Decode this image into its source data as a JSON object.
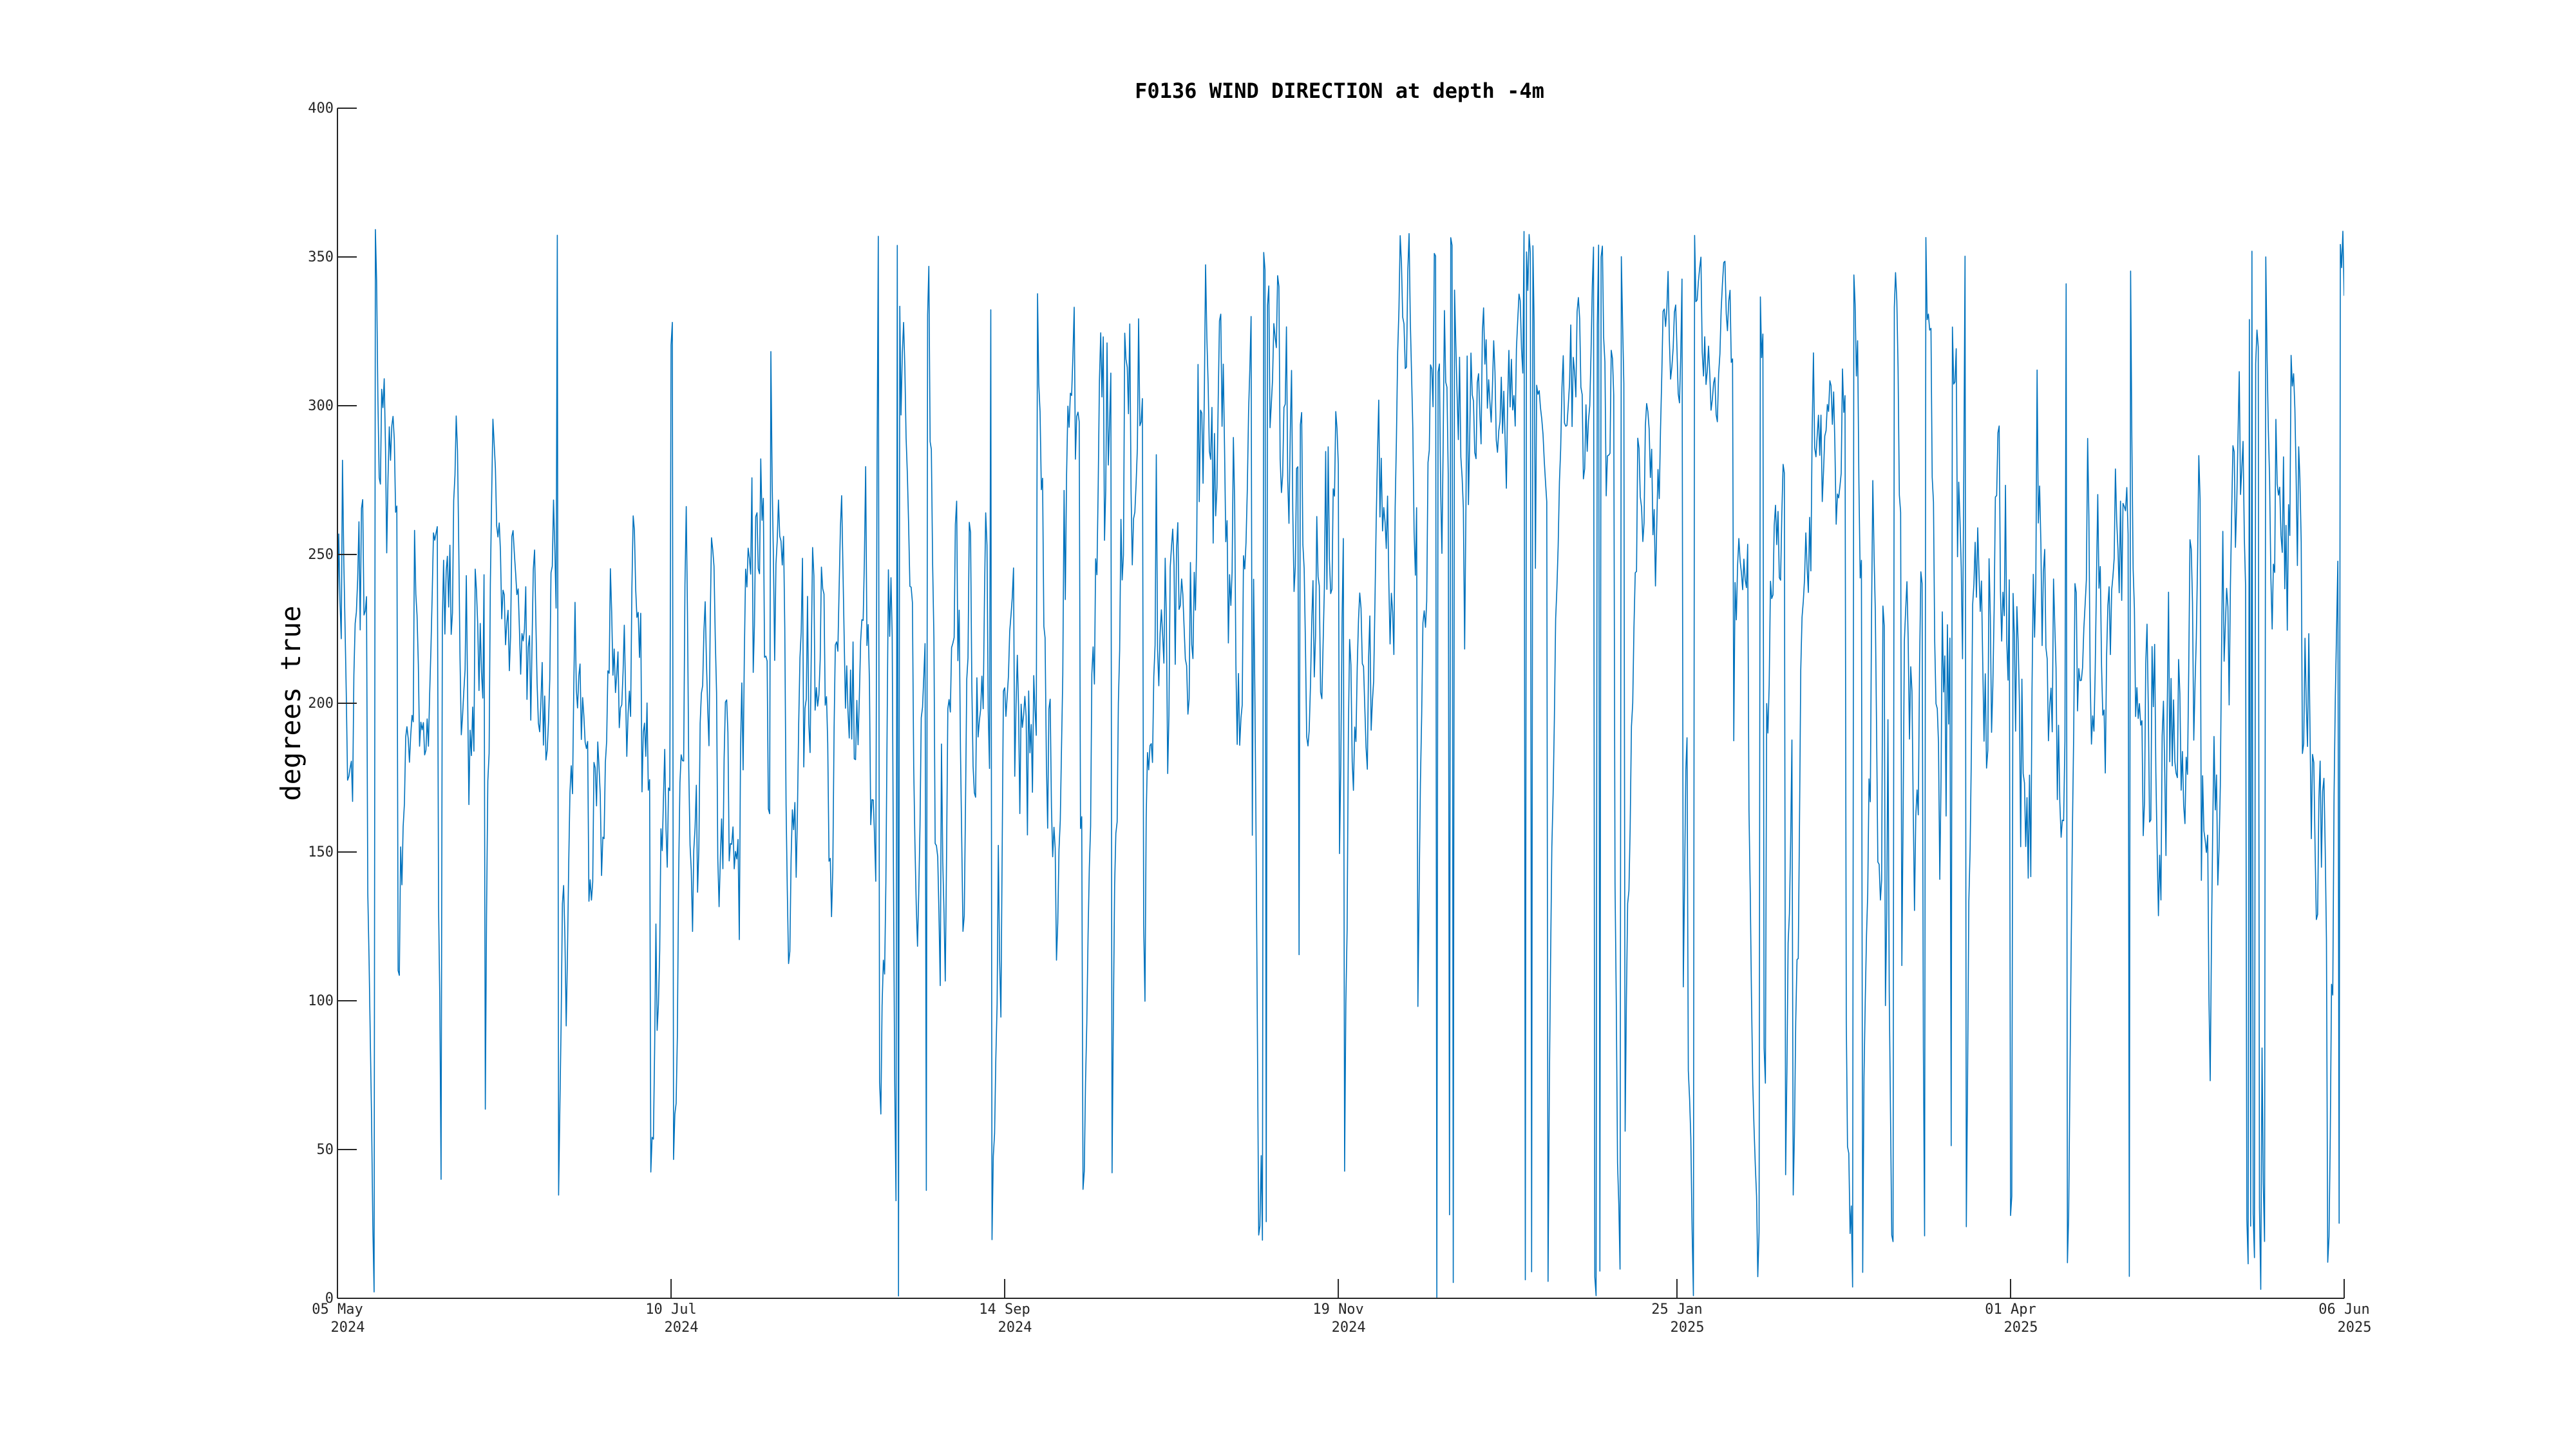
{
  "chart_data": {
    "type": "line",
    "title": "F0136 WIND DIRECTION at depth -4m",
    "xlabel": "",
    "ylabel": "degrees true",
    "ylim": [
      0,
      400
    ],
    "xlim": [
      "2024-05-05",
      "2025-06-06"
    ],
    "grid": false,
    "legend": "none",
    "series_color": "#0072BD",
    "y_ticks": [
      {
        "value": 0,
        "label": "0"
      },
      {
        "value": 50,
        "label": "50"
      },
      {
        "value": 100,
        "label": "100"
      },
      {
        "value": 150,
        "label": "150"
      },
      {
        "value": 200,
        "label": "200"
      },
      {
        "value": 250,
        "label": "250"
      },
      {
        "value": 300,
        "label": "300"
      },
      {
        "value": 350,
        "label": "350"
      },
      {
        "value": 400,
        "label": "400"
      }
    ],
    "x_ticks": [
      {
        "date": "2024-05-05",
        "line1": "05 May",
        "line2": "2024"
      },
      {
        "date": "2024-07-10",
        "line1": "10 Jul",
        "line2": "2024"
      },
      {
        "date": "2024-09-14",
        "line1": "14 Sep",
        "line2": "2024"
      },
      {
        "date": "2024-11-19",
        "line1": "19 Nov",
        "line2": "2024"
      },
      {
        "date": "2025-01-25",
        "line1": "25 Jan",
        "line2": "2025"
      },
      {
        "date": "2025-04-01",
        "line1": "01 Apr",
        "line2": "2025"
      },
      {
        "date": "2025-06-06",
        "line1": "06 Jun",
        "line2": "2025"
      }
    ],
    "series": [
      {
        "data_start": "2024-05-05",
        "data_end": "2025-06-06",
        "x_step_hours": 6,
        "segments": [
          {
            "start": "2024-05-05",
            "end": "2024-07-01",
            "mean": 215,
            "spread": 40
          },
          {
            "start": "2024-07-01",
            "end": "2024-09-25",
            "mean": 205,
            "spread": 45
          },
          {
            "start": "2024-09-25",
            "end": "2024-11-05",
            "mean": 270,
            "spread": 45
          },
          {
            "start": "2024-11-05",
            "end": "2024-12-25",
            "mean": 300,
            "spread": 40
          },
          {
            "start": "2024-12-25",
            "end": "2025-03-01",
            "mean": 300,
            "spread": 30
          },
          {
            "start": "2025-03-01",
            "end": "2025-06-06",
            "mean": 225,
            "spread": 50
          }
        ]
      }
    ]
  }
}
